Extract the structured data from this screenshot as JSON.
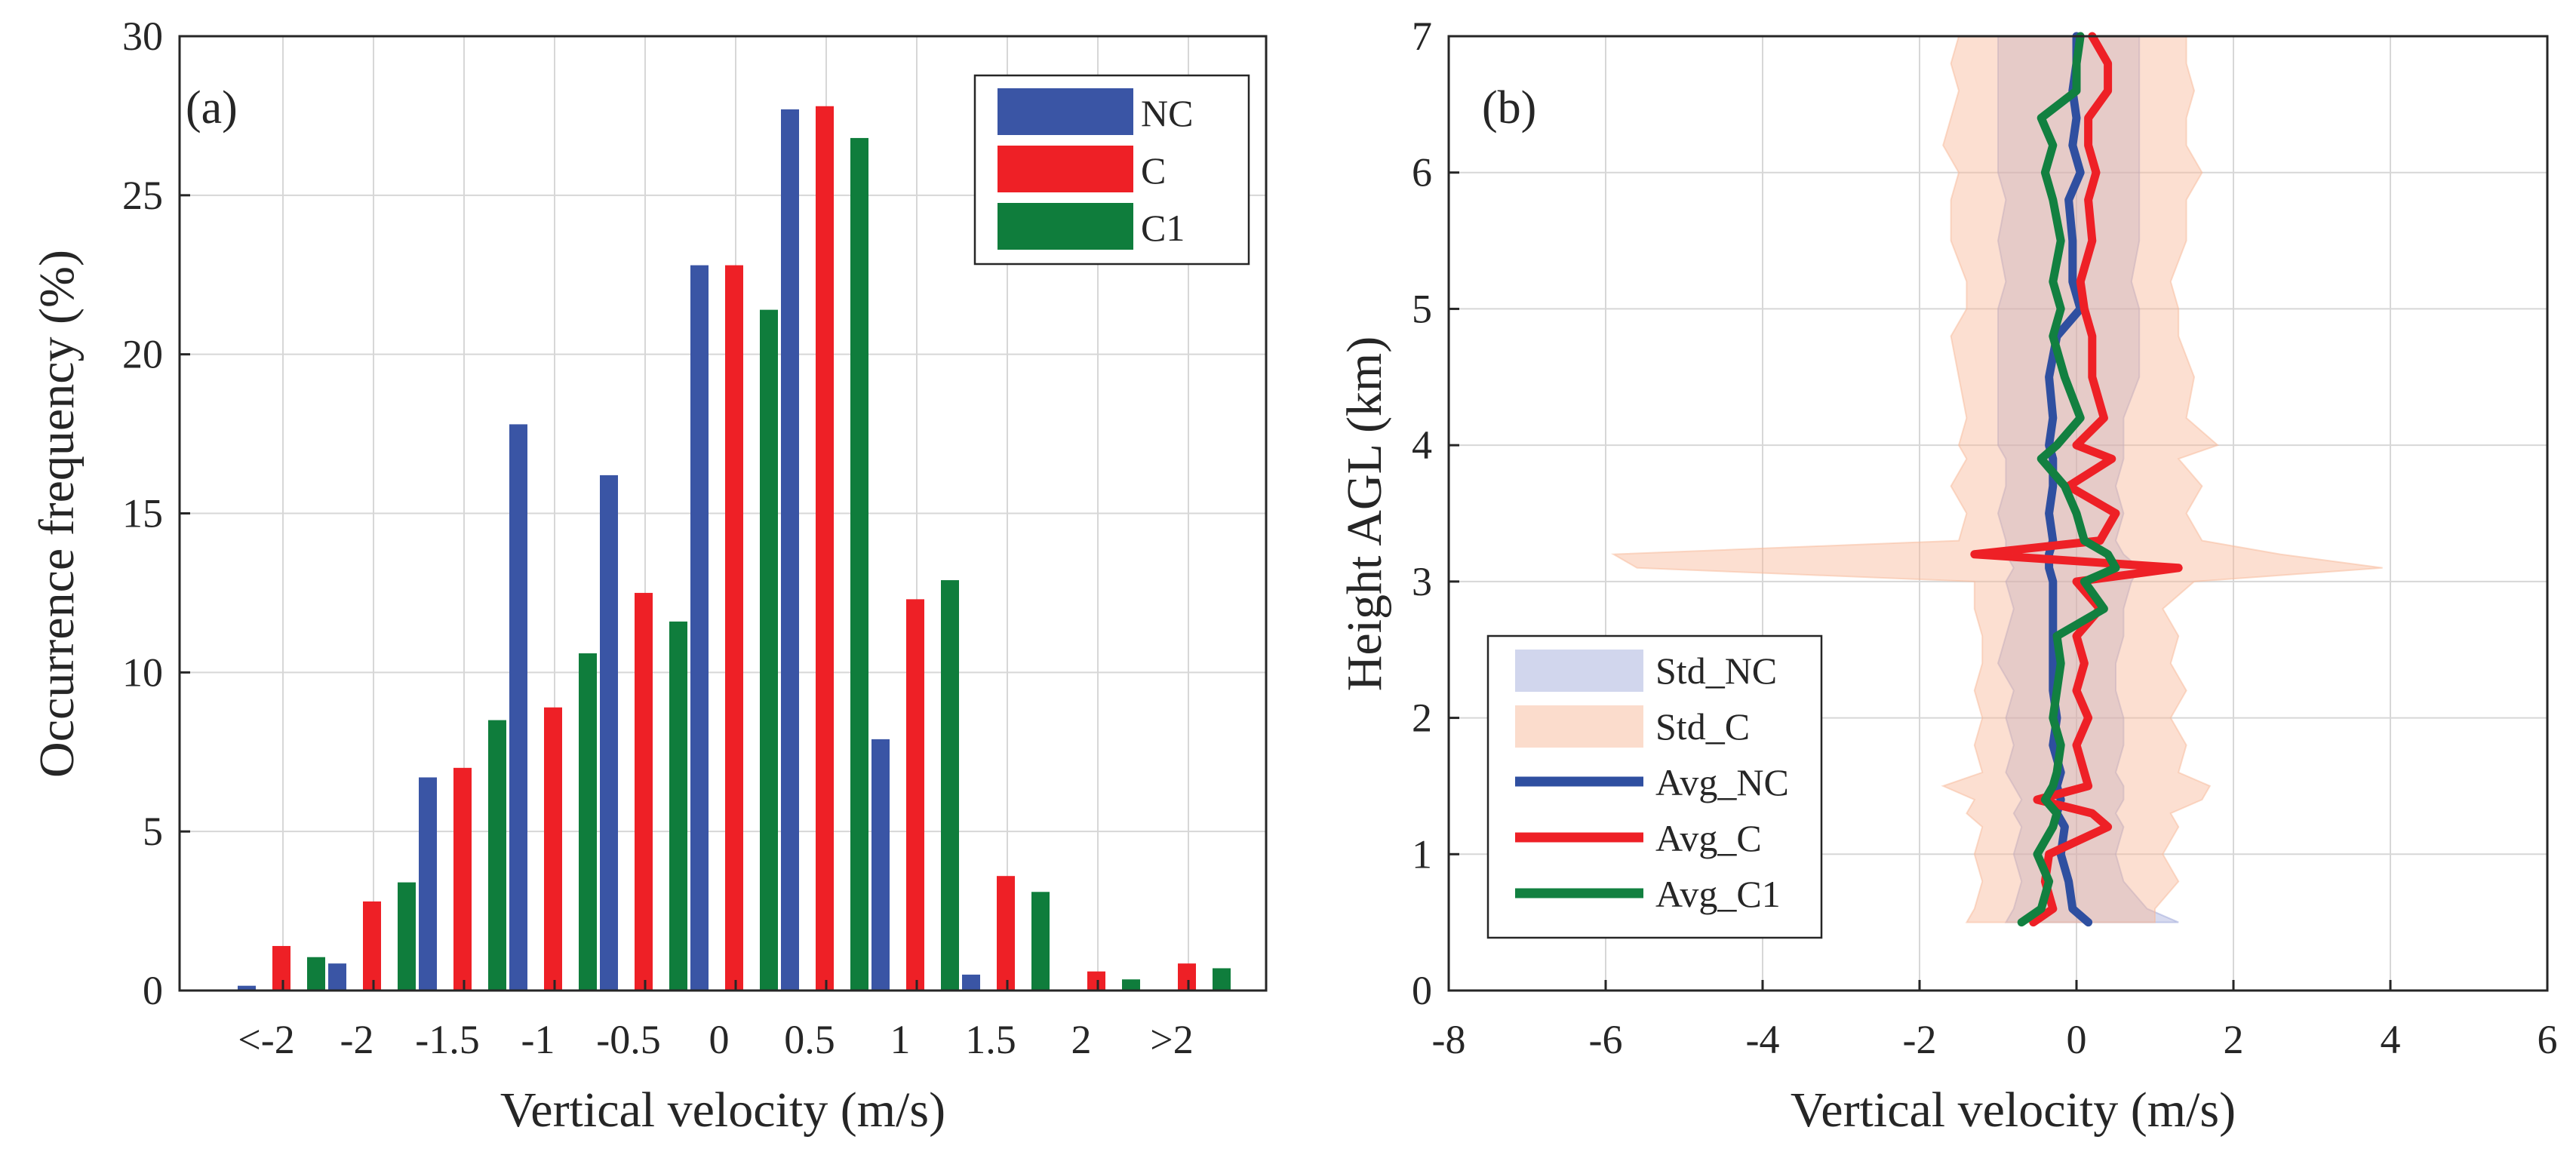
{
  "chart_data": [
    {
      "type": "bar",
      "panel_label": "(a)",
      "xlabel": "Vertical velocity (m/s)",
      "ylabel": "Occurrence frequency (%)",
      "ylim": [
        0,
        30
      ],
      "yticks": [
        "0",
        "5",
        "10",
        "15",
        "20",
        "25",
        "30"
      ],
      "categories": [
        "<-2",
        "-2",
        "-1.5",
        "-1",
        "-0.5",
        "0",
        "0.5",
        "1",
        "1.5",
        "2",
        ">2"
      ],
      "legend_position": "top-right",
      "grid": true,
      "series": [
        {
          "name": "NC",
          "color": "#3a55a5",
          "values": [
            0.15,
            0.85,
            6.7,
            17.8,
            16.2,
            22.8,
            27.7,
            7.9,
            0.5,
            0.0,
            0.0
          ]
        },
        {
          "name": "C",
          "color": "#ee2026",
          "values": [
            1.4,
            2.8,
            7.0,
            8.9,
            12.5,
            22.8,
            27.8,
            12.3,
            3.6,
            0.6,
            0.85
          ]
        },
        {
          "name": "C1",
          "color": "#0f7d3c",
          "values": [
            1.05,
            3.4,
            8.5,
            10.6,
            11.6,
            21.4,
            26.8,
            12.9,
            3.1,
            0.35,
            0.7
          ]
        }
      ]
    },
    {
      "type": "line",
      "panel_label": "(b)",
      "xlabel": "Vertical velocity (m/s)",
      "ylabel": "Height AGL (km)",
      "xlim": [
        -8,
        6
      ],
      "ylim": [
        0,
        7
      ],
      "xticks": [
        "-8",
        "-6",
        "-4",
        "-2",
        "0",
        "2",
        "4",
        "6"
      ],
      "yticks": [
        "0",
        "1",
        "2",
        "3",
        "4",
        "5",
        "6",
        "7"
      ],
      "legend_position": "bottom-left",
      "grid": true,
      "height": [
        0.5,
        0.6,
        0.8,
        1.0,
        1.2,
        1.3,
        1.4,
        1.5,
        1.6,
        1.8,
        2.0,
        2.2,
        2.4,
        2.6,
        2.8,
        3.0,
        3.1,
        3.2,
        3.3,
        3.5,
        3.7,
        3.9,
        4.0,
        4.2,
        4.5,
        4.8,
        5.0,
        5.2,
        5.5,
        5.8,
        6.0,
        6.2,
        6.4,
        6.6,
        6.8,
        7.0
      ],
      "series": [
        {
          "name": "Std_NC",
          "kind": "band",
          "color": "#9aa3d8",
          "lower": [
            -0.9,
            -0.8,
            -0.7,
            -0.8,
            -0.7,
            -0.8,
            -0.7,
            -0.8,
            -0.9,
            -0.8,
            -0.9,
            -0.8,
            -1.0,
            -0.9,
            -0.8,
            -0.9,
            -0.8,
            -0.9,
            -0.9,
            -1.0,
            -0.9,
            -0.9,
            -1.0,
            -1.0,
            -1.0,
            -1.0,
            -1.0,
            -0.9,
            -1.0,
            -0.9,
            -1.0,
            -1.0,
            -1.0,
            -1.0,
            -1.0,
            -1.0
          ],
          "upper": [
            1.3,
            0.9,
            0.6,
            0.5,
            0.6,
            0.5,
            0.6,
            0.6,
            0.5,
            0.6,
            0.6,
            0.5,
            0.5,
            0.6,
            0.6,
            0.7,
            0.8,
            0.6,
            0.5,
            0.6,
            0.5,
            0.6,
            0.6,
            0.6,
            0.8,
            0.8,
            0.8,
            0.7,
            0.8,
            0.8,
            0.8,
            0.8,
            0.8,
            0.8,
            0.8,
            0.8
          ]
        },
        {
          "name": "Std_C",
          "kind": "band",
          "color": "#f8b99a",
          "lower": [
            -1.4,
            -1.3,
            -1.2,
            -1.3,
            -1.2,
            -1.4,
            -1.3,
            -1.7,
            -1.2,
            -1.3,
            -1.2,
            -1.3,
            -1.2,
            -1.2,
            -1.3,
            -1.3,
            -5.6,
            -5.9,
            -1.5,
            -1.4,
            -1.6,
            -1.4,
            -1.5,
            -1.4,
            -1.5,
            -1.6,
            -1.4,
            -1.4,
            -1.6,
            -1.6,
            -1.5,
            -1.7,
            -1.6,
            -1.5,
            -1.6,
            -1.5
          ],
          "upper": [
            1.0,
            1.0,
            1.3,
            1.1,
            1.3,
            1.2,
            1.6,
            1.7,
            1.3,
            1.4,
            1.2,
            1.4,
            1.2,
            1.3,
            1.1,
            1.5,
            3.9,
            2.6,
            1.6,
            1.4,
            1.6,
            1.3,
            1.8,
            1.4,
            1.5,
            1.3,
            1.3,
            1.2,
            1.4,
            1.4,
            1.6,
            1.4,
            1.4,
            1.5,
            1.4,
            1.4
          ]
        },
        {
          "name": "Avg_NC",
          "kind": "line",
          "color": "#2f4fa0",
          "values": [
            0.15,
            -0.05,
            -0.1,
            -0.2,
            -0.15,
            -0.25,
            -0.2,
            -0.25,
            -0.2,
            -0.3,
            -0.25,
            -0.3,
            -0.3,
            -0.3,
            -0.3,
            -0.3,
            -0.35,
            -0.35,
            -0.3,
            -0.35,
            -0.3,
            -0.3,
            -0.35,
            -0.3,
            -0.35,
            -0.25,
            0.05,
            -0.05,
            -0.05,
            -0.1,
            0.05,
            -0.05,
            0.0,
            -0.05,
            0.0,
            0.0
          ]
        },
        {
          "name": "Avg_C",
          "kind": "line",
          "color": "#ee2026",
          "values": [
            -0.55,
            -0.3,
            -0.4,
            -0.35,
            0.4,
            0.2,
            -0.5,
            0.15,
            0.1,
            0.0,
            0.15,
            0.0,
            0.1,
            0.0,
            0.3,
            0.0,
            1.3,
            -1.3,
            0.3,
            0.5,
            -0.1,
            0.45,
            0.0,
            0.35,
            0.2,
            0.2,
            0.1,
            0.05,
            0.2,
            0.15,
            0.25,
            0.15,
            0.15,
            0.4,
            0.4,
            0.2
          ]
        },
        {
          "name": "Avg_C1",
          "kind": "line",
          "color": "#128040",
          "values": [
            -0.7,
            -0.45,
            -0.35,
            -0.5,
            -0.3,
            -0.25,
            -0.4,
            -0.3,
            -0.25,
            -0.2,
            -0.3,
            -0.25,
            -0.2,
            -0.25,
            0.35,
            0.1,
            0.5,
            0.4,
            0.1,
            0.0,
            -0.15,
            -0.45,
            -0.25,
            0.05,
            -0.15,
            -0.3,
            -0.2,
            -0.3,
            -0.2,
            -0.3,
            -0.4,
            -0.3,
            -0.45,
            0.0,
            0.0,
            0.05
          ]
        }
      ]
    }
  ]
}
